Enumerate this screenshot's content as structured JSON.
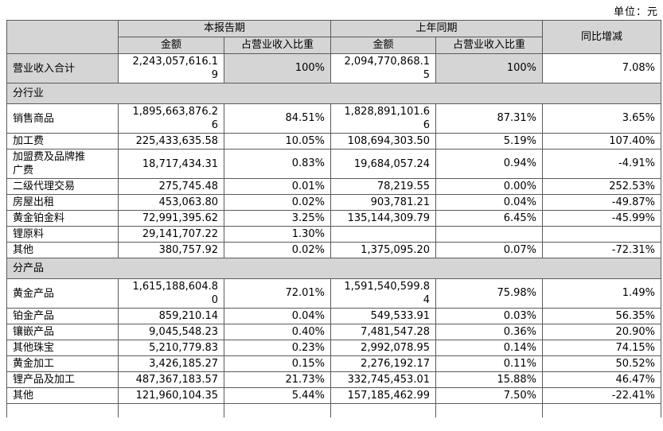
{
  "unit_label": "单位：元",
  "colors": {
    "header_bg": "#d5d5d5",
    "border": "#5a5a5a",
    "cell_bg": "#ffffff"
  },
  "table": {
    "col_headers": {
      "current_period": "本报告期",
      "prior_period": "上年同期",
      "yoy": "同比增减",
      "amount": "金额",
      "pct_of_revenue": "占营业收入比重"
    },
    "total_row": {
      "label": "营业收入合计",
      "cur_amount": "2,243,057,616.19",
      "cur_pct": "100%",
      "prior_amount": "2,094,770,868.15",
      "prior_pct": "100%",
      "yoy": "7.08%"
    },
    "sections": [
      {
        "title": "分行业",
        "rows": [
          [
            "销售商品",
            "1,895,663,876.26",
            "84.51%",
            "1,828,891,101.66",
            "87.31%",
            "3.65%"
          ],
          [
            "加工费",
            "225,433,635.58",
            "10.05%",
            "108,694,303.50",
            "5.19%",
            "107.40%"
          ],
          [
            "加盟费及品牌推广费",
            "18,717,434.31",
            "0.83%",
            "19,684,057.24",
            "0.94%",
            "-4.91%"
          ],
          [
            "二级代理交易",
            "275,745.48",
            "0.01%",
            "78,219.55",
            "0.00%",
            "252.53%"
          ],
          [
            "房屋出租",
            "453,063.80",
            "0.02%",
            "903,781.21",
            "0.04%",
            "-49.87%"
          ],
          [
            "黄金铂金料",
            "72,991,395.62",
            "3.25%",
            "135,144,309.79",
            "6.45%",
            "-45.99%"
          ],
          [
            "锂原料",
            "29,141,707.22",
            "1.30%",
            "",
            "",
            ""
          ],
          [
            "其他",
            "380,757.92",
            "0.02%",
            "1,375,095.20",
            "0.07%",
            "-72.31%"
          ]
        ]
      },
      {
        "title": "分产品",
        "rows": [
          [
            "黄金产品",
            "1,615,188,604.80",
            "72.01%",
            "1,591,540,599.84",
            "75.98%",
            "1.49%"
          ],
          [
            "铂金产品",
            "859,210.14",
            "0.04%",
            "549,533.91",
            "0.03%",
            "56.35%"
          ],
          [
            "镶嵌产品",
            "9,045,548.23",
            "0.40%",
            "7,481,547.28",
            "0.36%",
            "20.90%"
          ],
          [
            "其他珠宝",
            "5,210,779.83",
            "0.23%",
            "2,992,078.95",
            "0.14%",
            "74.15%"
          ],
          [
            "黄金加工",
            "3,426,185.27",
            "0.15%",
            "2,276,192.17",
            "0.11%",
            "50.52%"
          ],
          [
            "锂产品及加工",
            "487,367,183.57",
            "21.73%",
            "332,745,453.01",
            "15.88%",
            "46.47%"
          ],
          [
            "其他",
            "121,960,104.35",
            "5.44%",
            "157,185,462.99",
            "7.50%",
            "-22.41%"
          ]
        ]
      }
    ]
  }
}
